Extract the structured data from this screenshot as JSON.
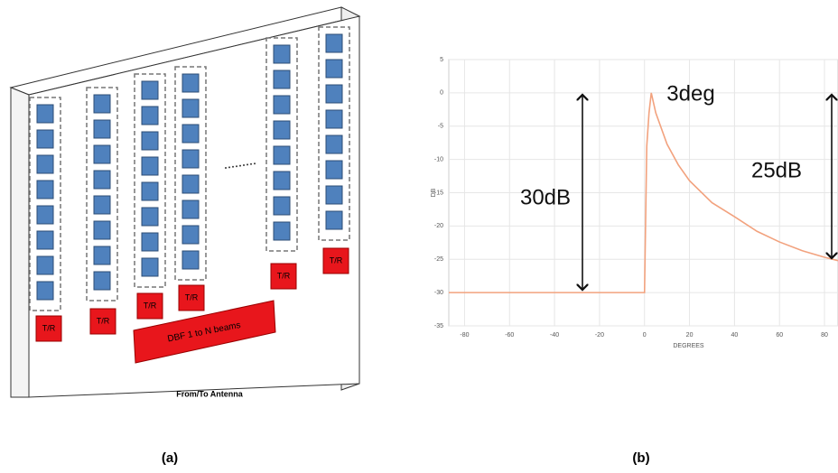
{
  "diagram": {
    "tr_labels": [
      "T/R",
      "T/R",
      "T/R",
      "T/R",
      "T/R",
      "T/R"
    ],
    "dbf_label": "DBF 1 to N beams",
    "caption": "From/To Antenna",
    "panel_label": "(a)"
  },
  "chart_data": {
    "type": "line",
    "panel_label": "(b)",
    "xlabel": "DEGREES",
    "ylabel": "DB",
    "x": [
      -87,
      0,
      1,
      2,
      3,
      5,
      10,
      15,
      20,
      30,
      40,
      50,
      60,
      70,
      80,
      86
    ],
    "series": [
      {
        "color": "#f2a27e",
        "values": [
          -30,
          -30,
          -8,
          -3,
          0,
          -3,
          -7.7,
          -10.8,
          -13.2,
          -16.5,
          -18.6,
          -20.8,
          -22.4,
          -23.7,
          -24.7,
          -25.2
        ]
      }
    ],
    "xlim": [
      -87,
      86
    ],
    "ylim": [
      -35,
      5
    ],
    "xticks": [
      -80,
      -60,
      -40,
      -20,
      0,
      20,
      40,
      60,
      80
    ],
    "yticks": [
      -35,
      -30,
      -25,
      -20,
      -15,
      -10,
      -5,
      0,
      5
    ],
    "grid": true,
    "annotations": [
      "30dB",
      "3deg",
      "25dB"
    ]
  }
}
